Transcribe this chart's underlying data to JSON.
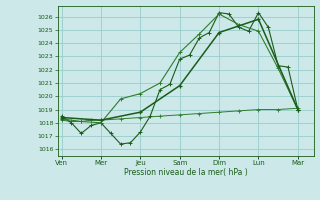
{
  "background_color": "#cce8e8",
  "grid_color": "#99cccc",
  "line_color_dark": "#1a5c1a",
  "line_color_med": "#2e7d2e",
  "xlabel": "Pression niveau de la mer( hPa )",
  "ylim": [
    1015.5,
    1026.8
  ],
  "yticks": [
    1016,
    1017,
    1018,
    1019,
    1020,
    1021,
    1022,
    1023,
    1024,
    1025,
    1026
  ],
  "xtick_labels": [
    "Ven",
    "Mer",
    "Jeu",
    "Sam",
    "Dim",
    "Lun",
    "Mar"
  ],
  "xtick_positions": [
    0,
    2,
    4,
    6,
    8,
    10,
    12
  ],
  "xlim": [
    -0.2,
    12.8
  ],
  "line1_x": [
    0,
    0.5,
    1,
    1.5,
    2,
    2.5,
    3,
    3.5,
    4,
    4.5,
    5,
    5.5,
    6,
    6.5,
    7,
    7.5,
    8,
    8.5,
    9,
    9.5,
    10,
    10.5,
    11,
    11.5,
    12
  ],
  "line1_y": [
    1018.5,
    1018.0,
    1017.2,
    1017.8,
    1018.0,
    1017.2,
    1016.4,
    1016.5,
    1017.3,
    1018.5,
    1020.5,
    1020.9,
    1022.8,
    1023.1,
    1024.4,
    1024.8,
    1026.3,
    1026.2,
    1025.2,
    1024.9,
    1026.3,
    1025.2,
    1022.3,
    1022.2,
    1019.0
  ],
  "line2_x": [
    0,
    1,
    2,
    3,
    4,
    5,
    6,
    7,
    8,
    9,
    10,
    11,
    12
  ],
  "line2_y": [
    1018.3,
    1018.1,
    1018.0,
    1019.8,
    1020.2,
    1021.0,
    1023.3,
    1024.7,
    1026.2,
    1025.4,
    1024.9,
    1022.1,
    1019.0
  ],
  "line3_x": [
    0,
    2,
    4,
    6,
    8,
    10,
    12
  ],
  "line3_y": [
    1018.4,
    1018.2,
    1018.8,
    1020.8,
    1024.8,
    1025.8,
    1019.0
  ],
  "line4_x": [
    0,
    0.5,
    1,
    1.5,
    2,
    3,
    4,
    5,
    6,
    7,
    8,
    9,
    10,
    11,
    12
  ],
  "line4_y": [
    1018.2,
    1018.1,
    1018.1,
    1018.2,
    1018.2,
    1018.3,
    1018.4,
    1018.5,
    1018.6,
    1018.7,
    1018.8,
    1018.9,
    1019.0,
    1019.0,
    1019.1
  ]
}
